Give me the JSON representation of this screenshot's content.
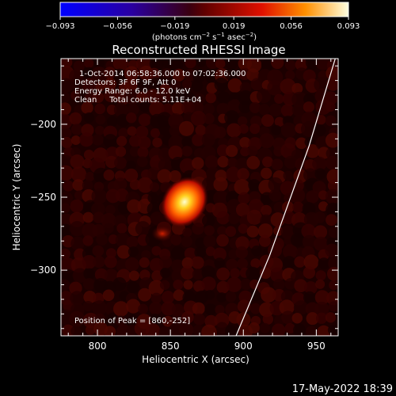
{
  "colorbar": {
    "ticks": [
      "−0.093",
      "−0.056",
      "−0.019",
      "0.019",
      "0.056",
      "0.093"
    ],
    "values": [
      -0.093,
      -0.056,
      -0.019,
      0.019,
      0.056,
      0.093
    ],
    "units_main": "(photons cm",
    "units_sup1": "−2",
    "units_mid": " s",
    "units_sup2": "−1",
    "units_mid2": " asec",
    "units_sup3": "−2",
    "units_end": ")"
  },
  "chart_data": {
    "type": "heatmap",
    "title": "Reconstructed RHESSI Image",
    "xlabel": "Heliocentric X (arcsec)",
    "ylabel": "Heliocentric Y (arcsec)",
    "xlim": [
      775,
      965
    ],
    "ylim": [
      -345,
      -155
    ],
    "x_ticks": [
      800,
      850,
      900,
      950
    ],
    "y_ticks": [
      -200,
      -250,
      -300
    ],
    "x_tick_labels": [
      "800",
      "850",
      "900",
      "950"
    ],
    "y_tick_labels": [
      "−200",
      "−250",
      "−300"
    ],
    "color_scale": [
      -0.093,
      0.093
    ],
    "annotations": [
      "1-Oct-2014 06:58:36.000 to 07:02:36.000",
      "Detectors: 3F 6F 9F, Att 0",
      "Energy Range: 6.0 - 12.0 keV",
      "Clean     Total counts: 5.11E+04"
    ],
    "peak_label": "Position of Peak = [860,-252]",
    "peak": [
      860,
      -252
    ],
    "limb_line": [
      [
        895,
        -345
      ],
      [
        918,
        -290
      ],
      [
        945,
        -215
      ],
      [
        963,
        -155
      ]
    ]
  },
  "footer_date": "17-May-2022 18:39"
}
